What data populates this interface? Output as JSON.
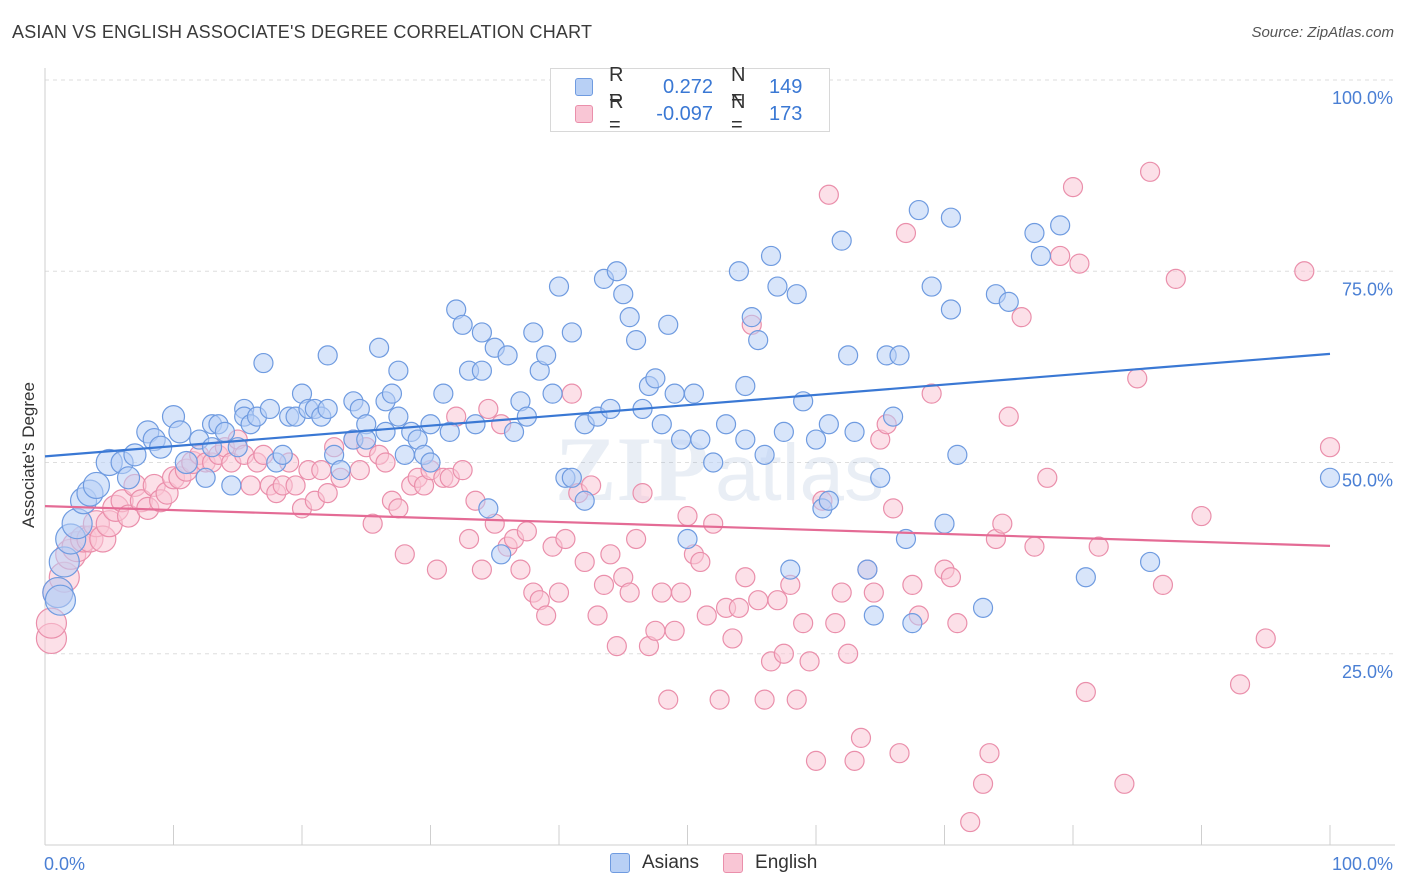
{
  "header": {
    "title": "ASIAN VS ENGLISH ASSOCIATE'S DEGREE CORRELATION CHART",
    "source": "Source: ZipAtlas.com"
  },
  "legend": {
    "rows": [
      {
        "r_label": "R =",
        "r_value": "0.272",
        "n_label": "N =",
        "n_value": "149"
      },
      {
        "r_label": "R =",
        "r_value": "-0.097",
        "n_label": "N =",
        "n_value": "173"
      }
    ]
  },
  "bottom_legend": {
    "asians": "Asians",
    "english": "English"
  },
  "watermark": {
    "zip": "ZIP",
    "atlas": "atlas"
  },
  "colors": {
    "blue": "#3a78d4",
    "blue_fill": "#b8d0f5",
    "pink": "#e46b95",
    "pink_fill": "#f9c6d5"
  },
  "chart_data": {
    "type": "scatter",
    "title": "ASIAN VS ENGLISH ASSOCIATE'S DEGREE CORRELATION CHART",
    "xlabel": "",
    "ylabel": "Associate's Degree",
    "xlim": [
      0,
      100
    ],
    "ylim": [
      0,
      100
    ],
    "x_tick_labels": [
      "0.0%",
      "100.0%"
    ],
    "y_ticks": [
      25,
      50,
      75,
      100
    ],
    "y_tick_labels": [
      "25.0%",
      "50.0%",
      "75.0%",
      "100.0%"
    ],
    "grid": true,
    "series": [
      {
        "name": "Asians",
        "r": 0.272,
        "n": 149,
        "trend": [
          [
            0,
            50.8
          ],
          [
            100,
            64.2
          ]
        ],
        "points": [
          [
            1,
            33
          ],
          [
            1.2,
            32
          ],
          [
            1.5,
            37
          ],
          [
            2,
            40
          ],
          [
            2.5,
            42
          ],
          [
            3,
            45
          ],
          [
            3.5,
            46
          ],
          [
            4,
            47
          ],
          [
            5,
            50
          ],
          [
            6,
            50
          ],
          [
            6.5,
            48
          ],
          [
            7,
            51
          ],
          [
            8,
            54
          ],
          [
            8.5,
            53
          ],
          [
            9,
            52
          ],
          [
            10,
            56
          ],
          [
            10.5,
            54
          ],
          [
            11,
            50
          ],
          [
            12,
            53
          ],
          [
            12.5,
            48
          ],
          [
            13,
            55
          ],
          [
            13.5,
            55
          ],
          [
            13,
            52
          ],
          [
            14,
            54
          ],
          [
            14.5,
            47
          ],
          [
            15,
            52
          ],
          [
            15.5,
            57
          ],
          [
            15.5,
            56
          ],
          [
            16,
            55
          ],
          [
            16.5,
            56
          ],
          [
            17,
            63
          ],
          [
            17.5,
            57
          ],
          [
            18,
            50
          ],
          [
            18.5,
            51
          ],
          [
            19,
            56
          ],
          [
            19.5,
            56
          ],
          [
            20,
            59
          ],
          [
            20.5,
            57
          ],
          [
            21,
            57
          ],
          [
            21.5,
            56
          ],
          [
            22,
            64
          ],
          [
            22,
            57
          ],
          [
            22.5,
            51
          ],
          [
            23,
            49
          ],
          [
            24,
            58
          ],
          [
            24,
            53
          ],
          [
            24.5,
            57
          ],
          [
            25,
            55
          ],
          [
            25,
            53
          ],
          [
            26,
            65
          ],
          [
            26.5,
            54
          ],
          [
            26.5,
            58
          ],
          [
            27,
            59
          ],
          [
            27.5,
            62
          ],
          [
            27.5,
            56
          ],
          [
            28,
            51
          ],
          [
            28.5,
            54
          ],
          [
            29,
            53
          ],
          [
            29.5,
            51
          ],
          [
            30,
            50
          ],
          [
            30,
            55
          ],
          [
            31,
            59
          ],
          [
            31.5,
            54
          ],
          [
            32,
            70
          ],
          [
            32.5,
            68
          ],
          [
            33,
            62
          ],
          [
            33.5,
            55
          ],
          [
            34,
            67
          ],
          [
            34,
            62
          ],
          [
            34.5,
            44
          ],
          [
            35,
            65
          ],
          [
            35.5,
            38
          ],
          [
            36,
            64
          ],
          [
            36.5,
            54
          ],
          [
            37,
            58
          ],
          [
            37.5,
            56
          ],
          [
            38,
            67
          ],
          [
            38.5,
            62
          ],
          [
            39,
            64
          ],
          [
            39.5,
            59
          ],
          [
            40,
            73
          ],
          [
            40.5,
            48
          ],
          [
            41,
            48
          ],
          [
            41,
            67
          ],
          [
            42,
            45
          ],
          [
            42,
            55
          ],
          [
            43,
            56
          ],
          [
            43.5,
            74
          ],
          [
            44,
            57
          ],
          [
            44.5,
            75
          ],
          [
            45,
            72
          ],
          [
            45.5,
            69
          ],
          [
            46,
            66
          ],
          [
            46.5,
            57
          ],
          [
            47,
            60
          ],
          [
            47.5,
            61
          ],
          [
            48,
            55
          ],
          [
            48.5,
            68
          ],
          [
            49,
            59
          ],
          [
            49.5,
            53
          ],
          [
            50,
            40
          ],
          [
            50.5,
            59
          ],
          [
            51,
            53
          ],
          [
            52,
            50
          ],
          [
            53,
            55
          ],
          [
            54,
            75
          ],
          [
            54.5,
            60
          ],
          [
            54.5,
            53
          ],
          [
            55,
            69
          ],
          [
            55.5,
            66
          ],
          [
            56,
            51
          ],
          [
            56.5,
            77
          ],
          [
            57,
            73
          ],
          [
            57.5,
            54
          ],
          [
            58,
            36
          ],
          [
            58.5,
            72
          ],
          [
            59,
            58
          ],
          [
            60,
            53
          ],
          [
            60.5,
            44
          ],
          [
            61,
            45
          ],
          [
            61,
            55
          ],
          [
            62,
            79
          ],
          [
            62.5,
            64
          ],
          [
            63,
            54
          ],
          [
            64,
            36
          ],
          [
            64.5,
            30
          ],
          [
            65,
            48
          ],
          [
            65.5,
            64
          ],
          [
            66,
            56
          ],
          [
            66.5,
            64
          ],
          [
            67,
            40
          ],
          [
            67.5,
            29
          ],
          [
            68,
            83
          ],
          [
            69,
            73
          ],
          [
            70,
            42
          ],
          [
            70.5,
            70
          ],
          [
            70.5,
            82
          ],
          [
            71,
            51
          ],
          [
            73,
            31
          ],
          [
            74,
            72
          ],
          [
            75,
            71
          ],
          [
            77,
            80
          ],
          [
            77.5,
            77
          ],
          [
            79,
            81
          ],
          [
            81,
            35
          ],
          [
            86,
            37
          ],
          [
            100,
            48
          ]
        ]
      },
      {
        "name": "English",
        "r": -0.097,
        "n": 173,
        "trend": [
          [
            0,
            44.3
          ],
          [
            100,
            39.1
          ]
        ],
        "points": [
          [
            0.5,
            27
          ],
          [
            0.5,
            29
          ],
          [
            1,
            33
          ],
          [
            1.5,
            35
          ],
          [
            2,
            38
          ],
          [
            2.5,
            39
          ],
          [
            3,
            40
          ],
          [
            3.5,
            40
          ],
          [
            4,
            42
          ],
          [
            4.5,
            40
          ],
          [
            5,
            42
          ],
          [
            5.5,
            44
          ],
          [
            6,
            45
          ],
          [
            6.5,
            43
          ],
          [
            7,
            47
          ],
          [
            7.5,
            45
          ],
          [
            8,
            44
          ],
          [
            8.5,
            47
          ],
          [
            9,
            45
          ],
          [
            9.5,
            46
          ],
          [
            10,
            48
          ],
          [
            10.5,
            48
          ],
          [
            11,
            49
          ],
          [
            11.5,
            50
          ],
          [
            12,
            51
          ],
          [
            12.5,
            50
          ],
          [
            13,
            50
          ],
          [
            13.5,
            51
          ],
          [
            14,
            52
          ],
          [
            14.5,
            50
          ],
          [
            15,
            53
          ],
          [
            15.5,
            51
          ],
          [
            16,
            47
          ],
          [
            16.5,
            50
          ],
          [
            17,
            51
          ],
          [
            17.5,
            47
          ],
          [
            18,
            46
          ],
          [
            18.5,
            47
          ],
          [
            19,
            50
          ],
          [
            19.5,
            47
          ],
          [
            20,
            44
          ],
          [
            20.5,
            49
          ],
          [
            21,
            45
          ],
          [
            21.5,
            49
          ],
          [
            22,
            46
          ],
          [
            22.5,
            52
          ],
          [
            23,
            48
          ],
          [
            24,
            53
          ],
          [
            24.5,
            49
          ],
          [
            25,
            52
          ],
          [
            25.5,
            42
          ],
          [
            26,
            51
          ],
          [
            26.5,
            50
          ],
          [
            27,
            45
          ],
          [
            27.5,
            44
          ],
          [
            28,
            38
          ],
          [
            28.5,
            47
          ],
          [
            29,
            48
          ],
          [
            29.5,
            47
          ],
          [
            30,
            49
          ],
          [
            30.5,
            36
          ],
          [
            31,
            48
          ],
          [
            31.5,
            48
          ],
          [
            32,
            56
          ],
          [
            32.5,
            49
          ],
          [
            33,
            40
          ],
          [
            33.5,
            45
          ],
          [
            34,
            36
          ],
          [
            34.5,
            57
          ],
          [
            35,
            42
          ],
          [
            35.5,
            55
          ],
          [
            36,
            39
          ],
          [
            36.5,
            40
          ],
          [
            37,
            36
          ],
          [
            37.5,
            41
          ],
          [
            38,
            33
          ],
          [
            38.5,
            32
          ],
          [
            39,
            30
          ],
          [
            39.5,
            39
          ],
          [
            40,
            33
          ],
          [
            40.5,
            40
          ],
          [
            41,
            59
          ],
          [
            41.5,
            46
          ],
          [
            42,
            37
          ],
          [
            42.5,
            47
          ],
          [
            43,
            30
          ],
          [
            43.5,
            34
          ],
          [
            44,
            38
          ],
          [
            44.5,
            26
          ],
          [
            45,
            35
          ],
          [
            45.5,
            33
          ],
          [
            46,
            40
          ],
          [
            46.5,
            46
          ],
          [
            47,
            26
          ],
          [
            47.5,
            28
          ],
          [
            48,
            33
          ],
          [
            48.5,
            19
          ],
          [
            49,
            28
          ],
          [
            49.5,
            33
          ],
          [
            50,
            43
          ],
          [
            50.5,
            38
          ],
          [
            51,
            37
          ],
          [
            51.5,
            30
          ],
          [
            52,
            42
          ],
          [
            52.5,
            19
          ],
          [
            53,
            31
          ],
          [
            53.5,
            27
          ],
          [
            54,
            31
          ],
          [
            54.5,
            35
          ],
          [
            55,
            68
          ],
          [
            55.5,
            32
          ],
          [
            56,
            19
          ],
          [
            56.5,
            24
          ],
          [
            57,
            32
          ],
          [
            57.5,
            25
          ],
          [
            58,
            34
          ],
          [
            58.5,
            19
          ],
          [
            59,
            29
          ],
          [
            59.5,
            24
          ],
          [
            60,
            11
          ],
          [
            60.5,
            45
          ],
          [
            61,
            85
          ],
          [
            61.5,
            29
          ],
          [
            62,
            33
          ],
          [
            62.5,
            25
          ],
          [
            63,
            11
          ],
          [
            63.5,
            14
          ],
          [
            64,
            36
          ],
          [
            64.5,
            33
          ],
          [
            65,
            53
          ],
          [
            65.5,
            55
          ],
          [
            66,
            44
          ],
          [
            66.5,
            12
          ],
          [
            67,
            80
          ],
          [
            67.5,
            34
          ],
          [
            68,
            30
          ],
          [
            69,
            59
          ],
          [
            70,
            36
          ],
          [
            70.5,
            35
          ],
          [
            71,
            29
          ],
          [
            72,
            3
          ],
          [
            73,
            8
          ],
          [
            73.5,
            12
          ],
          [
            74,
            40
          ],
          [
            74.5,
            42
          ],
          [
            75,
            56
          ],
          [
            76,
            69
          ],
          [
            77,
            39
          ],
          [
            78,
            48
          ],
          [
            79,
            77
          ],
          [
            80,
            86
          ],
          [
            80.5,
            76
          ],
          [
            81,
            20
          ],
          [
            82,
            39
          ],
          [
            84,
            8
          ],
          [
            85,
            61
          ],
          [
            86,
            88
          ],
          [
            87,
            34
          ],
          [
            88,
            74
          ],
          [
            90,
            43
          ],
          [
            93,
            21
          ],
          [
            95,
            27
          ],
          [
            98,
            75
          ],
          [
            100,
            52
          ]
        ]
      }
    ]
  }
}
